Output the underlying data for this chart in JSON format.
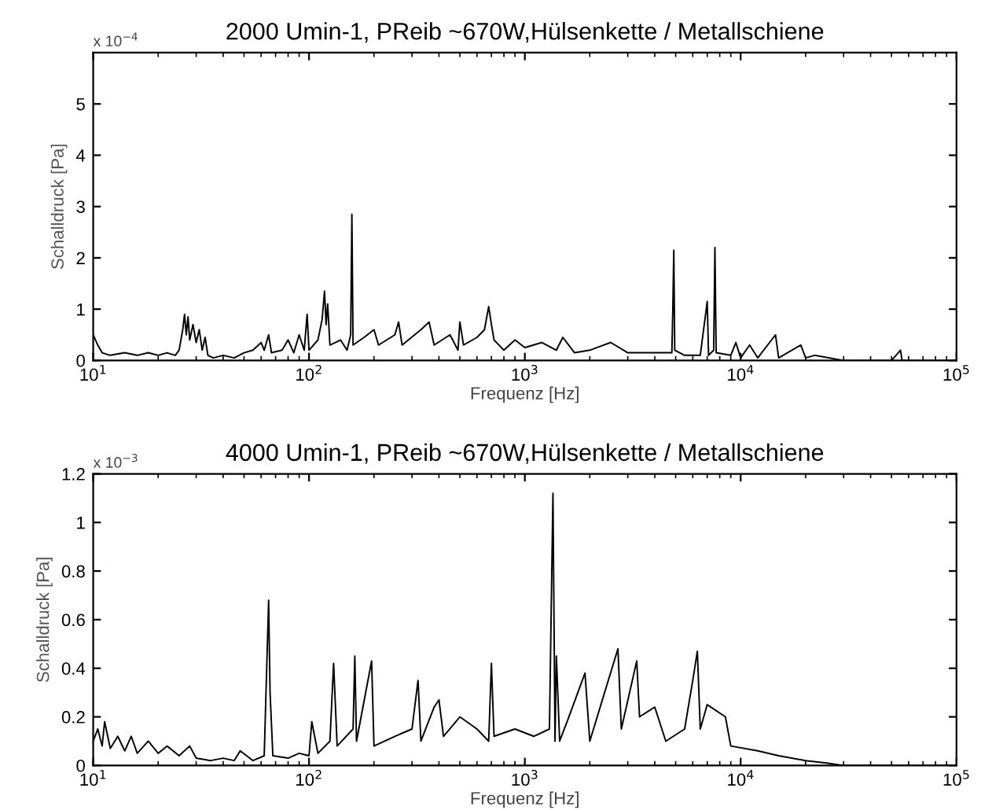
{
  "chart_data": [
    {
      "type": "line",
      "title": "2000 Umin-1, PReib ~670W,Hülsenkette / Metallschiene",
      "xlabel": "Frequenz [Hz]",
      "ylabel": "Schalldruck [Pa]",
      "log": "x",
      "grid": false,
      "legend": false,
      "marker": "none",
      "line_style": "solid",
      "annotations": [
        "x 10$^{−4}$"
      ],
      "xlim": [
        10,
        100000
      ],
      "xticks": [
        {
          "value": 10,
          "label": "10$^{1}$"
        },
        {
          "value": 100,
          "label": "10$^{2}$"
        },
        {
          "value": 1000,
          "label": "10$^{3}$"
        },
        {
          "value": 10000,
          "label": "10$^{4}$"
        },
        {
          "value": 100000,
          "label": "10$^{5}$"
        }
      ],
      "ylim": [
        0,
        6
      ],
      "yticks": [
        0,
        1,
        2,
        3,
        4,
        5
      ],
      "x": [
        10,
        10.5,
        11,
        12,
        14,
        16,
        18,
        20,
        22,
        24,
        25,
        26,
        26.5,
        27,
        27.5,
        28,
        29,
        30,
        31,
        32,
        33,
        34,
        36,
        40,
        45,
        50,
        55,
        60,
        62,
        65,
        67,
        75,
        80,
        85,
        90,
        95,
        98,
        100,
        110,
        115,
        118,
        120,
        122,
        125,
        140,
        150,
        156,
        158,
        160,
        180,
        200,
        210,
        250,
        260,
        270,
        330,
        360,
        380,
        450,
        490,
        500,
        520,
        600,
        650,
        680,
        700,
        720,
        800,
        900,
        1000,
        1200,
        1400,
        1500,
        1700,
        2000,
        2500,
        3000,
        4000,
        4800,
        4850,
        4900,
        4950,
        5500,
        6500,
        7000,
        7100,
        7500,
        7600,
        7700,
        9000,
        9500,
        10000,
        11000,
        12000,
        14500,
        15000,
        19000,
        20000,
        22000,
        30000,
        50000,
        55000,
        56000,
        70000,
        100000
      ],
      "series": [
        {
          "color": "#000000",
          "values": [
            0.5,
            0.3,
            0.15,
            0.1,
            0.15,
            0.1,
            0.15,
            0.1,
            0.15,
            0.1,
            0.2,
            0.6,
            0.9,
            0.5,
            0.85,
            0.4,
            0.7,
            0.35,
            0.6,
            0.2,
            0.45,
            0.1,
            0.05,
            0.1,
            0.05,
            0.15,
            0.2,
            0.35,
            0.2,
            0.5,
            0.15,
            0.2,
            0.4,
            0.15,
            0.5,
            0.2,
            0.9,
            0.2,
            0.4,
            0.8,
            1.35,
            0.7,
            1.1,
            0.3,
            0.4,
            0.2,
            0.5,
            2.85,
            0.3,
            0.45,
            0.6,
            0.3,
            0.5,
            0.75,
            0.3,
            0.6,
            0.75,
            0.3,
            0.5,
            0.2,
            0.75,
            0.3,
            0.45,
            0.6,
            1.05,
            0.7,
            0.4,
            0.2,
            0.4,
            0.25,
            0.35,
            0.2,
            0.45,
            0.15,
            0.2,
            0.35,
            0.15,
            0.15,
            0.15,
            1.0,
            2.15,
            0.2,
            0.1,
            0.1,
            1.15,
            0.1,
            0.2,
            2.2,
            0.15,
            0.1,
            0.35,
            0.05,
            0.3,
            0.05,
            0.5,
            0.05,
            0.3,
            0.05,
            0.1,
            0,
            0,
            0.2,
            0,
            0,
            0
          ]
        }
      ]
    },
    {
      "type": "line",
      "title": "4000 Umin-1, PReib ~670W,Hülsenkette / Metallschiene",
      "xlabel": "Frequenz [Hz]",
      "ylabel": "Schalldruck [Pa]",
      "log": "x",
      "grid": false,
      "legend": false,
      "marker": "none",
      "line_style": "solid",
      "annotations": [
        "x 10$^{−3}$"
      ],
      "xlim": [
        10,
        100000
      ],
      "xticks": [
        {
          "value": 10,
          "label": "10$^{1}$"
        },
        {
          "value": 100,
          "label": "10$^{2}$"
        },
        {
          "value": 1000,
          "label": "10$^{3}$"
        },
        {
          "value": 10000,
          "label": "10$^{4}$"
        },
        {
          "value": 100000,
          "label": "10$^{5}$"
        }
      ],
      "ylim": [
        0,
        1.2
      ],
      "yticks": [
        0,
        0.2,
        0.4,
        0.6,
        0.8,
        1,
        1.2
      ],
      "x": [
        10,
        10.5,
        11,
        11.3,
        12,
        13,
        14,
        15,
        16,
        18,
        20,
        22,
        25,
        28,
        30,
        35,
        40,
        45,
        48,
        55,
        62,
        65,
        66,
        68,
        80,
        90,
        100,
        103,
        110,
        125,
        130,
        135,
        160,
        163,
        166,
        195,
        200,
        250,
        300,
        320,
        330,
        380,
        400,
        420,
        500,
        600,
        680,
        700,
        720,
        900,
        1100,
        1300,
        1350,
        1380,
        1400,
        1450,
        1600,
        1900,
        2000,
        2700,
        2800,
        3300,
        3400,
        4000,
        4500,
        5500,
        6000,
        6300,
        6500,
        7000,
        8500,
        9000,
        12000,
        15000,
        20000,
        25000,
        30000,
        50000,
        100000
      ],
      "series": [
        {
          "color": "#000000",
          "values": [
            0.1,
            0.15,
            0.08,
            0.18,
            0.07,
            0.12,
            0.06,
            0.12,
            0.05,
            0.1,
            0.05,
            0.08,
            0.04,
            0.08,
            0.03,
            0.02,
            0.03,
            0.02,
            0.06,
            0.02,
            0.04,
            0.68,
            0.3,
            0.04,
            0.03,
            0.05,
            0.04,
            0.18,
            0.05,
            0.1,
            0.42,
            0.08,
            0.15,
            0.45,
            0.1,
            0.43,
            0.08,
            0.12,
            0.15,
            0.35,
            0.1,
            0.24,
            0.27,
            0.12,
            0.2,
            0.15,
            0.1,
            0.42,
            0.12,
            0.15,
            0.12,
            0.15,
            1.12,
            0.1,
            0.45,
            0.1,
            0.2,
            0.38,
            0.1,
            0.48,
            0.15,
            0.43,
            0.2,
            0.24,
            0.1,
            0.15,
            0.35,
            0.47,
            0.15,
            0.25,
            0.2,
            0.08,
            0.06,
            0.04,
            0.02,
            0.01,
            0,
            0,
            0
          ]
        }
      ]
    }
  ]
}
